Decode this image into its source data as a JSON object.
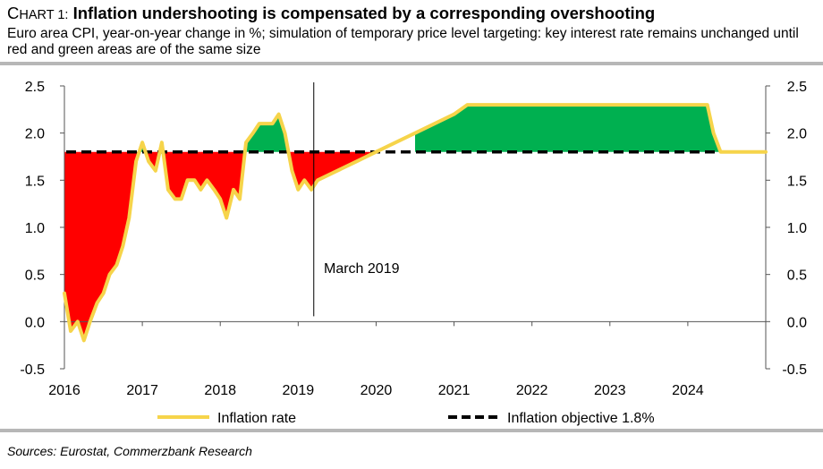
{
  "header": {
    "chart_prefix_first": "C",
    "chart_prefix_rest": "HART 1:",
    "title": "Inflation undershooting is compensated by a corresponding overshooting",
    "subtitle": "Euro area CPI, year-on-year change in %; simulation of temporary price level targeting: key interest rate remains unchanged until red and green areas are of the same size"
  },
  "footer": {
    "source": "Sources: Eurostat, Commerzbank Research"
  },
  "annotation": {
    "label": "March 2019",
    "x": 2019.2
  },
  "chart_data": {
    "type": "area",
    "xlim": [
      2016.0,
      2025.0
    ],
    "ylim": [
      -0.5,
      2.5
    ],
    "x_ticks": [
      "2016",
      "2017",
      "2018",
      "2019",
      "2020",
      "2021",
      "2022",
      "2023",
      "2024"
    ],
    "y_ticks_left": [
      "2.5",
      "2.0",
      "1.5",
      "1.0",
      "0.5",
      "0.0",
      "-0.5"
    ],
    "y_ticks_right": [
      "2.5",
      "2.0",
      "1.5",
      "1.0",
      "0.5",
      "0.0",
      "-0.5"
    ],
    "series": [
      {
        "name": "Inflation rate",
        "x": [
          2016.0,
          2016.08,
          2016.17,
          2016.25,
          2016.33,
          2016.42,
          2016.5,
          2016.58,
          2016.67,
          2016.75,
          2016.83,
          2016.92,
          2017.0,
          2017.08,
          2017.17,
          2017.25,
          2017.33,
          2017.42,
          2017.5,
          2017.58,
          2017.67,
          2017.75,
          2017.83,
          2017.92,
          2018.0,
          2018.08,
          2018.17,
          2018.25,
          2018.33,
          2018.42,
          2018.5,
          2018.58,
          2018.67,
          2018.75,
          2018.83,
          2018.92,
          2019.0,
          2019.08,
          2019.17,
          2019.25,
          2019.5,
          2019.75,
          2020.0,
          2020.5,
          2021.0,
          2021.17,
          2021.5,
          2022.0,
          2022.5,
          2023.0,
          2023.5,
          2024.0,
          2024.25,
          2024.33,
          2024.42,
          2024.5,
          2024.75,
          2025.0
        ],
        "values": [
          0.3,
          -0.1,
          0.0,
          -0.2,
          0.0,
          0.2,
          0.3,
          0.5,
          0.6,
          0.8,
          1.1,
          1.7,
          1.9,
          1.7,
          1.6,
          1.9,
          1.4,
          1.3,
          1.3,
          1.5,
          1.5,
          1.4,
          1.5,
          1.4,
          1.3,
          1.1,
          1.4,
          1.3,
          1.9,
          2.0,
          2.1,
          2.1,
          2.1,
          2.2,
          2.0,
          1.6,
          1.4,
          1.5,
          1.4,
          1.5,
          1.6,
          1.7,
          1.8,
          2.0,
          2.2,
          2.3,
          2.3,
          2.3,
          2.3,
          2.3,
          2.3,
          2.3,
          2.3,
          2.0,
          1.8,
          1.8,
          1.8,
          1.8
        ],
        "color": "#f6d44a"
      },
      {
        "name": "Inflation objective 1.8%",
        "value": 1.8,
        "color": "#000000",
        "style": "dashed"
      }
    ],
    "fill_below_color": "#ff0000",
    "fill_above_color": "#00b050",
    "legend_position": "bottom"
  }
}
